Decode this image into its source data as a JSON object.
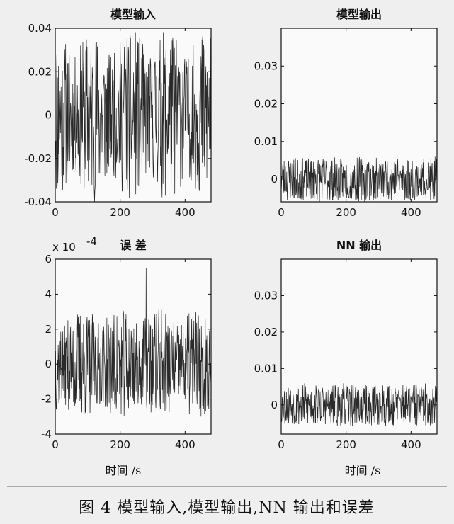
{
  "figure": {
    "caption": "图 4   模型输入,模型输出,NN 输出和误差",
    "xlabel_left": "时间 /s",
    "xlabel_right": "时间 /s"
  },
  "chart_data": [
    {
      "id": "model-input",
      "type": "line",
      "title": "模型输入",
      "multiplier": "",
      "xlim": [
        0,
        480
      ],
      "ylim": [
        -0.04,
        0.04
      ],
      "x_ticks": [
        0,
        200,
        400
      ],
      "x_tick_labels": [
        "0",
        "200",
        "400"
      ],
      "y_ticks": [
        -0.04,
        -0.02,
        0,
        0.02,
        0.04
      ],
      "y_tick_labels": [
        "-0.04",
        "-0.02",
        "0",
        "0.02",
        "0.04"
      ],
      "signal": {
        "n": 480,
        "amplitude": 0.04,
        "center": 0,
        "envelope": 0.35,
        "seed": 11
      }
    },
    {
      "id": "model-output",
      "type": "line",
      "title": "模型输出",
      "multiplier": "",
      "xlim": [
        0,
        480
      ],
      "ylim": [
        -0.006,
        0.04
      ],
      "x_ticks": [
        0,
        200,
        400
      ],
      "x_tick_labels": [
        "0",
        "200",
        "400"
      ],
      "y_ticks": [
        0,
        0.01,
        0.02,
        0.03
      ],
      "y_tick_labels": [
        "0",
        "0.01",
        "0.02",
        "0.03"
      ],
      "signal": {
        "n": 480,
        "amplitude": 0.006,
        "center": 0,
        "envelope": 0.1,
        "seed": 23
      }
    },
    {
      "id": "error",
      "type": "line",
      "title": "误 差",
      "multiplier": "x 10",
      "multiplier_exp": "-4",
      "xlim": [
        0,
        480
      ],
      "ylim": [
        -4,
        6
      ],
      "x_ticks": [
        0,
        200,
        400
      ],
      "x_tick_labels": [
        "0",
        "200",
        "400"
      ],
      "y_ticks": [
        -4,
        -2,
        0,
        2,
        4,
        6
      ],
      "y_tick_labels": [
        "-4",
        "-2",
        "0",
        "2",
        "4",
        "6"
      ],
      "signal": {
        "n": 480,
        "amplitude": 3.2,
        "center": 0,
        "envelope": 0.3,
        "seed": 37,
        "spike_x": 280,
        "spike_y": 5.5
      }
    },
    {
      "id": "nn-output",
      "type": "line",
      "title": "NN 输出",
      "multiplier": "",
      "xlim": [
        0,
        480
      ],
      "ylim": [
        -0.008,
        0.04
      ],
      "x_ticks": [
        0,
        200,
        400
      ],
      "x_tick_labels": [
        "0",
        "200",
        "400"
      ],
      "y_ticks": [
        0,
        0.01,
        0.02,
        0.03
      ],
      "y_tick_labels": [
        "0",
        "0.01",
        "0.02",
        "0.03"
      ],
      "signal": {
        "n": 480,
        "amplitude": 0.006,
        "center": 0,
        "envelope": 0.1,
        "seed": 53
      }
    }
  ]
}
